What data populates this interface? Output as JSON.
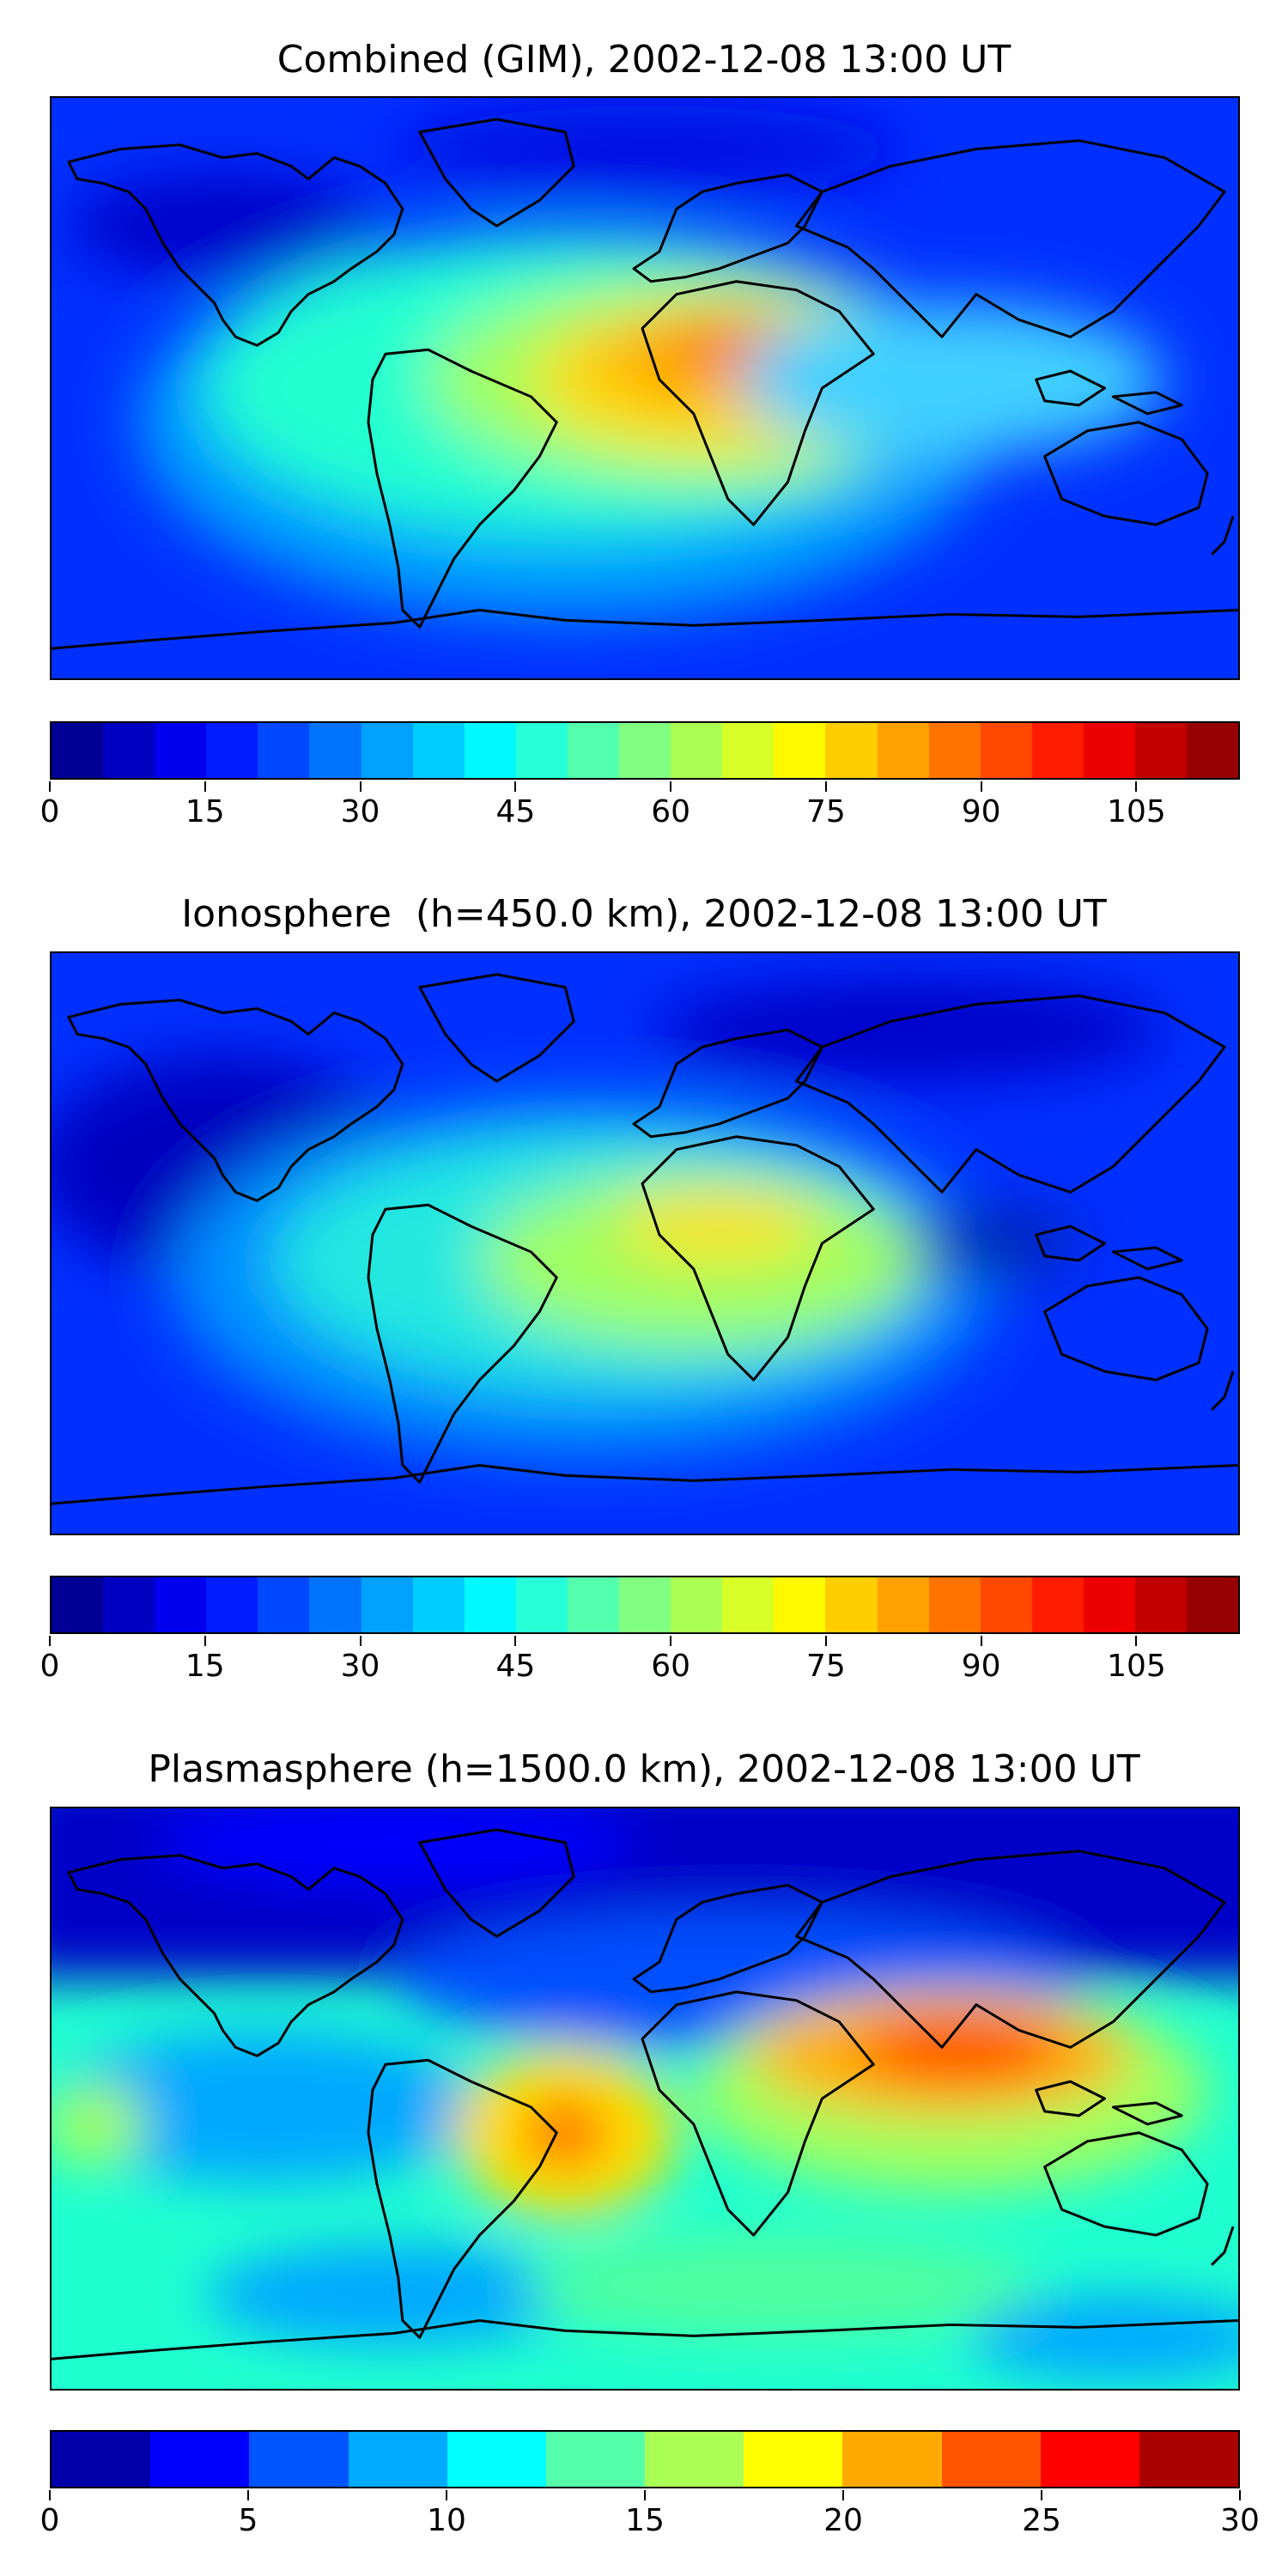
{
  "panels": [
    {
      "title": "Combined (GIM), 2002-12-08 13:00 UT",
      "colorbar": {
        "min": 0,
        "max": 115,
        "step": 5,
        "tick_labels": [
          "0",
          "15",
          "30",
          "45",
          "60",
          "75",
          "90",
          "105"
        ],
        "tick_values": [
          0,
          15,
          30,
          45,
          60,
          75,
          90,
          105
        ]
      }
    },
    {
      "title": "Ionosphere  (h=450.0 km), 2002-12-08 13:00 UT",
      "colorbar": {
        "min": 0,
        "max": 115,
        "step": 5,
        "tick_labels": [
          "0",
          "15",
          "30",
          "45",
          "60",
          "75",
          "90",
          "105"
        ],
        "tick_values": [
          0,
          15,
          30,
          45,
          60,
          75,
          90,
          105
        ]
      }
    },
    {
      "title": "Plasmasphere (h=1500.0 km), 2002-12-08 13:00 UT",
      "colorbar": {
        "min": 0,
        "max": 30,
        "step": 2.5,
        "tick_labels": [
          "0",
          "5",
          "10",
          "15",
          "20",
          "25",
          "30"
        ],
        "tick_values": [
          0,
          5,
          10,
          15,
          20,
          25,
          30
        ]
      }
    }
  ],
  "colormap": "jet",
  "background_color": "#0000ff",
  "coastline_color": "#000000"
}
